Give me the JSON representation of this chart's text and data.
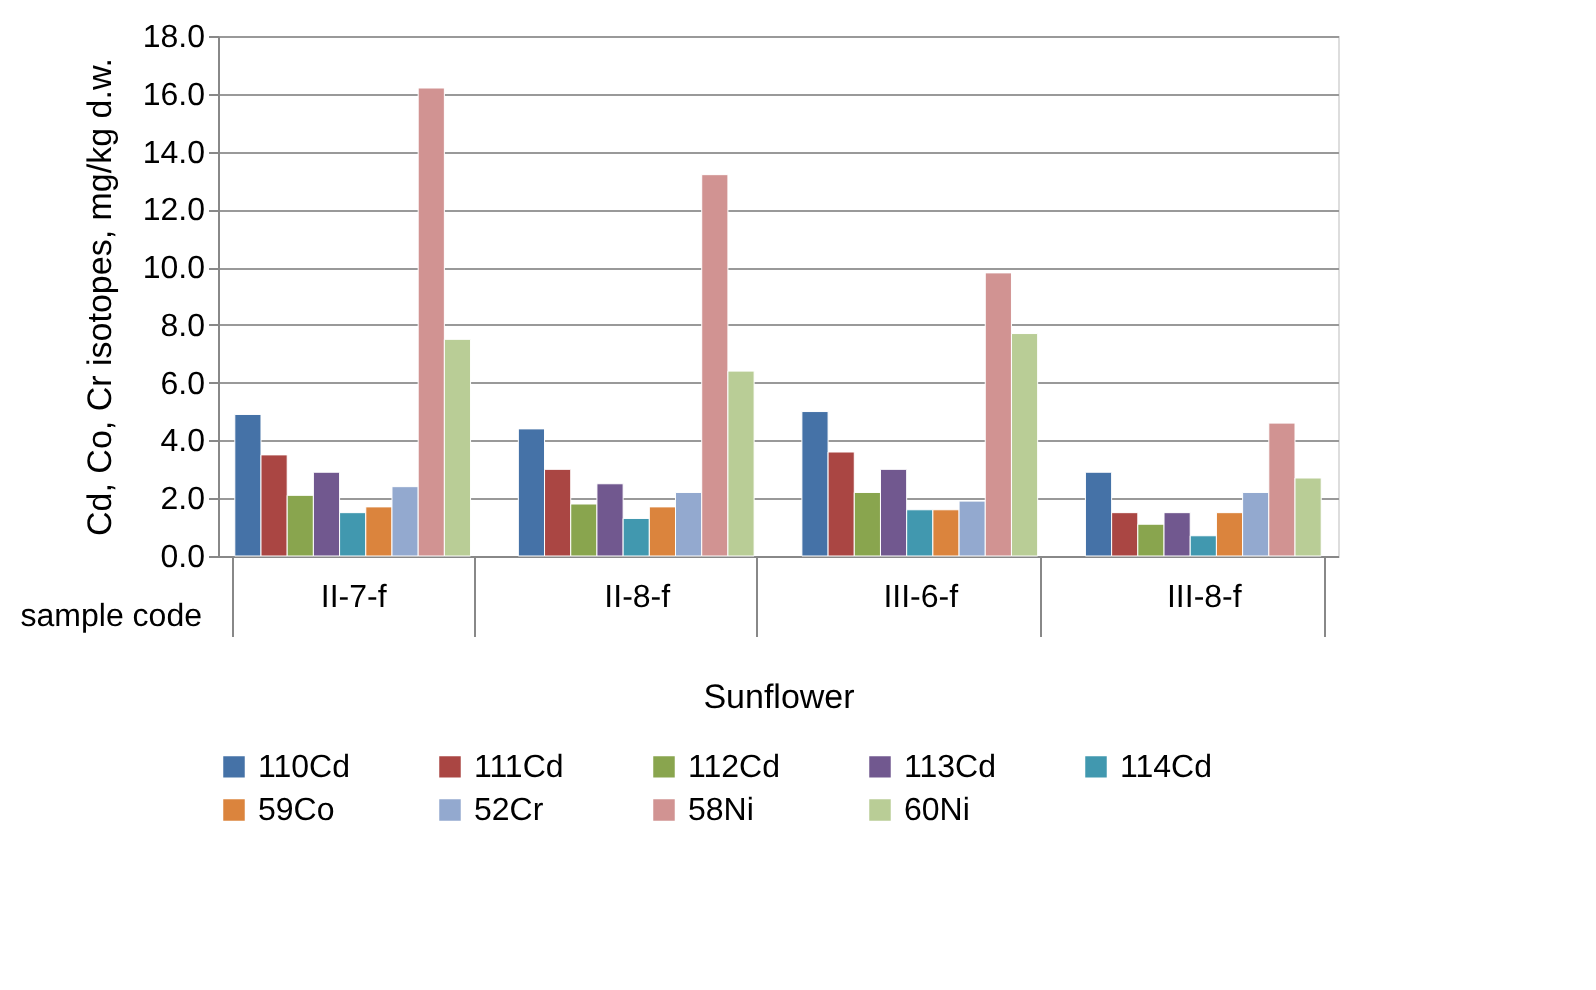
{
  "chart_data": {
    "type": "bar",
    "ylabel": "Cd, Co, Cr isotopes, mg/kg d.w.",
    "xlabel": "Sunflower",
    "annotations": [
      "sample code"
    ],
    "categories": [
      "II-7-f",
      "II-8-f",
      "III-6-f",
      "III-8-f"
    ],
    "series": [
      {
        "name": "110Cd",
        "color": "#4572a7",
        "values": [
          4.9,
          4.4,
          5.0,
          2.9
        ]
      },
      {
        "name": "111Cd",
        "color": "#aa4643",
        "values": [
          3.5,
          3.0,
          3.6,
          1.5
        ]
      },
      {
        "name": "112Cd",
        "color": "#89a54e",
        "values": [
          2.1,
          1.8,
          2.2,
          1.1
        ]
      },
      {
        "name": "113Cd",
        "color": "#71588f",
        "values": [
          2.9,
          2.5,
          3.0,
          1.5
        ]
      },
      {
        "name": "114Cd",
        "color": "#4198af",
        "values": [
          1.5,
          1.3,
          1.6,
          0.7
        ]
      },
      {
        "name": "59Co",
        "color": "#db843d",
        "values": [
          1.7,
          1.7,
          1.6,
          1.5
        ]
      },
      {
        "name": "52Cr",
        "color": "#93a9cf",
        "values": [
          2.4,
          2.2,
          1.9,
          2.2
        ]
      },
      {
        "name": "58Ni",
        "color": "#d19392",
        "values": [
          16.2,
          13.2,
          9.8,
          4.6
        ]
      },
      {
        "name": "60Ni",
        "color": "#b9cd96",
        "values": [
          7.5,
          6.4,
          7.7,
          2.7
        ]
      }
    ],
    "ylim": [
      0,
      18
    ],
    "yticks": [
      {
        "value": 0,
        "label": "0.0"
      },
      {
        "value": 2,
        "label": "2.0"
      },
      {
        "value": 4,
        "label": "4.0"
      },
      {
        "value": 6,
        "label": "6.0"
      },
      {
        "value": 8,
        "label": "8.0"
      },
      {
        "value": 10,
        "label": "10.0"
      },
      {
        "value": 12,
        "label": "12.0"
      },
      {
        "value": 14,
        "label": "14.0"
      },
      {
        "value": 16,
        "label": "16.0"
      },
      {
        "value": 18,
        "label": "18.0"
      }
    ],
    "grid": "y",
    "legend": "bottom"
  }
}
